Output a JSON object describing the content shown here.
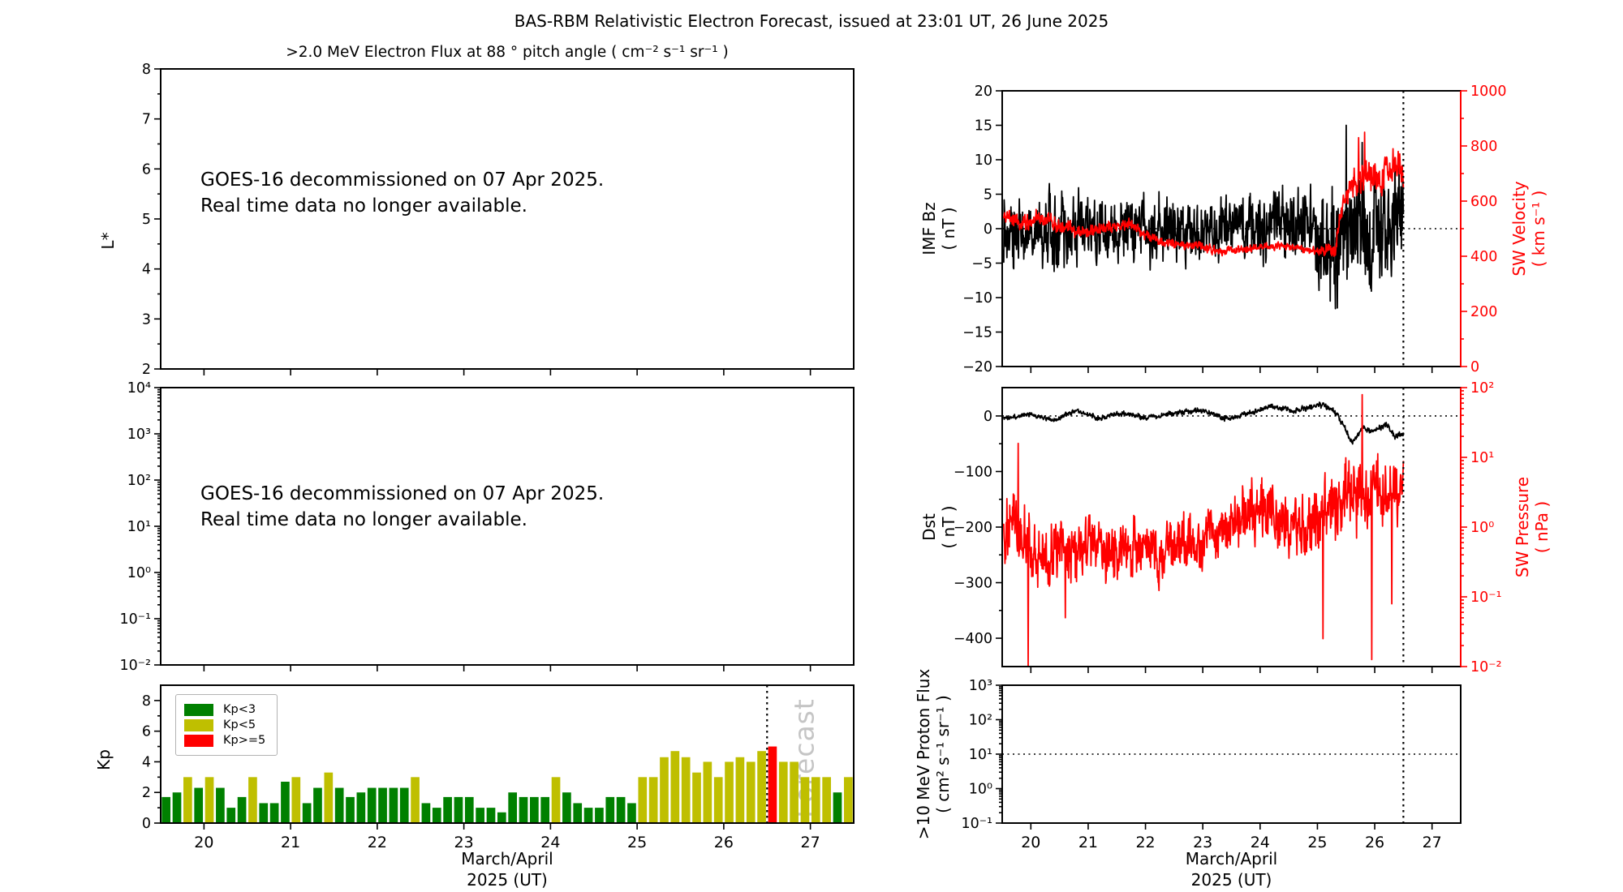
{
  "suptitle": "BAS-RBM Relativistic Electron Forecast, issued at 23:01 UT, 26 June 2025",
  "panels": {
    "electron_flux": {
      "title": ">2.0 MeV Electron Flux at 88 ° pitch angle ( cm⁻² s⁻¹ sr⁻¹ )",
      "ylabel": "L*",
      "yticks": [
        [
          "8",
          8
        ],
        [
          "7",
          7
        ],
        [
          "6",
          6
        ],
        [
          "5",
          5
        ],
        [
          "4",
          4
        ],
        [
          "3",
          3
        ],
        [
          "2",
          2
        ]
      ],
      "notice1": "GOES-16 decommissioned on 07 Apr 2025.",
      "notice2": "Real time data no longer available."
    },
    "flux_log": {
      "yticks": [
        [
          "10⁴",
          4
        ],
        [
          "10³",
          3
        ],
        [
          "10²",
          2
        ],
        [
          "10¹",
          1
        ],
        [
          "10⁰",
          0
        ],
        [
          "10⁻¹",
          -1
        ],
        [
          "10⁻²",
          -2
        ]
      ],
      "notice1": "GOES-16 decommissioned on 07 Apr 2025.",
      "notice2": "Real time data no longer available."
    },
    "kp": {
      "ylabel": "Kp",
      "yticks": [
        [
          "0",
          0
        ],
        [
          "2",
          2
        ],
        [
          "4",
          4
        ],
        [
          "6",
          6
        ],
        [
          "8",
          8
        ]
      ],
      "legend": [
        {
          "label": "Kp<3",
          "color": "#008000"
        },
        {
          "label": "Kp<5",
          "color": "#bfbf00"
        },
        {
          "label": "Kp>=5",
          "color": "#ff0000"
        }
      ],
      "forecast_label": "Forecast"
    },
    "imf_sw": {
      "ylabel_left1": "IMF Bz",
      "ylabel_left2": "( nT )",
      "ylabel_right1": "SW Velocity",
      "ylabel_right2": "( km s⁻¹ )",
      "yticks_left": [
        [
          "20",
          20
        ],
        [
          "15",
          15
        ],
        [
          "10",
          10
        ],
        [
          "5",
          5
        ],
        [
          "0",
          0
        ],
        [
          "−5",
          -5
        ],
        [
          "−10",
          -10
        ],
        [
          "−15",
          -15
        ],
        [
          "−20",
          -20
        ]
      ],
      "yticks_right": [
        [
          "1000",
          1000
        ],
        [
          "800",
          800
        ],
        [
          "600",
          600
        ],
        [
          "400",
          400
        ],
        [
          "200",
          200
        ],
        [
          "0",
          0
        ]
      ]
    },
    "dst_pressure": {
      "ylabel_left1": "Dst",
      "ylabel_left2": "( nT )",
      "ylabel_right1": "SW Pressure",
      "ylabel_right2": "( nPa )",
      "yticks_left": [
        [
          "0",
          0
        ],
        [
          "−100",
          -100
        ],
        [
          "−200",
          -200
        ],
        [
          "−300",
          -300
        ],
        [
          "−400",
          -400
        ]
      ],
      "yticks_right": [
        [
          "10²",
          2
        ],
        [
          "10¹",
          1
        ],
        [
          "10⁰",
          0
        ],
        [
          "10⁻¹",
          -1
        ],
        [
          "10⁻²",
          -2
        ]
      ]
    },
    "proton": {
      "ylabel1": ">10 MeV Proton Flux",
      "ylabel2": "( cm² s⁻¹ sr⁻¹ )",
      "yticks": [
        [
          "10³",
          3
        ],
        [
          "10²",
          2
        ],
        [
          "10¹",
          1
        ],
        [
          "10⁰",
          0
        ],
        [
          "10⁻¹",
          -1
        ]
      ]
    }
  },
  "xaxis": {
    "ticks": [
      [
        "20",
        20
      ],
      [
        "21",
        21
      ],
      [
        "22",
        22
      ],
      [
        "23",
        23
      ],
      [
        "24",
        24
      ],
      [
        "25",
        25
      ],
      [
        "26",
        26
      ],
      [
        "27",
        27
      ]
    ],
    "label1": "March/April",
    "label2": "2025 (UT)",
    "forecast_day": 26.5
  },
  "chart_data": [
    {
      "id": "kp_bars",
      "type": "bar",
      "panel": "kp",
      "xlim": [
        19.5,
        27.5
      ],
      "ylim": [
        0,
        9
      ],
      "bar_start_day": 19.375,
      "bar_step_days": 0.125,
      "colors": {
        "g": "#008000",
        "y": "#bfbf00",
        "r": "#ff0000"
      },
      "bars": [
        [
          "y",
          3.0
        ],
        [
          "g",
          1.7
        ],
        [
          "g",
          2.0
        ],
        [
          "y",
          3.0
        ],
        [
          "g",
          2.3
        ],
        [
          "y",
          3.0
        ],
        [
          "g",
          2.3
        ],
        [
          "g",
          1.0
        ],
        [
          "g",
          1.7
        ],
        [
          "y",
          3.0
        ],
        [
          "g",
          1.3
        ],
        [
          "g",
          1.3
        ],
        [
          "g",
          2.7
        ],
        [
          "y",
          3.0
        ],
        [
          "g",
          1.3
        ],
        [
          "g",
          2.3
        ],
        [
          "y",
          3.3
        ],
        [
          "g",
          2.3
        ],
        [
          "g",
          1.7
        ],
        [
          "g",
          2.0
        ],
        [
          "g",
          2.3
        ],
        [
          "g",
          2.3
        ],
        [
          "g",
          2.3
        ],
        [
          "g",
          2.3
        ],
        [
          "y",
          3.0
        ],
        [
          "g",
          1.3
        ],
        [
          "g",
          1.0
        ],
        [
          "g",
          1.7
        ],
        [
          "g",
          1.7
        ],
        [
          "g",
          1.7
        ],
        [
          "g",
          1.0
        ],
        [
          "g",
          1.0
        ],
        [
          "g",
          0.7
        ],
        [
          "g",
          2.0
        ],
        [
          "g",
          1.7
        ],
        [
          "g",
          1.7
        ],
        [
          "g",
          1.7
        ],
        [
          "y",
          3.0
        ],
        [
          "g",
          2.0
        ],
        [
          "g",
          1.3
        ],
        [
          "g",
          1.0
        ],
        [
          "g",
          1.0
        ],
        [
          "g",
          1.7
        ],
        [
          "g",
          1.7
        ],
        [
          "g",
          1.3
        ],
        [
          "y",
          3.0
        ],
        [
          "y",
          3.0
        ],
        [
          "y",
          4.3
        ],
        [
          "y",
          4.7
        ],
        [
          "y",
          4.3
        ],
        [
          "y",
          3.3
        ],
        [
          "y",
          4.0
        ],
        [
          "y",
          3.0
        ],
        [
          "y",
          4.0
        ],
        [
          "y",
          4.3
        ],
        [
          "y",
          4.0
        ],
        [
          "y",
          4.7
        ],
        [
          "r",
          5.0
        ],
        [
          "y",
          4.0
        ],
        [
          "y",
          4.0
        ],
        [
          "y",
          3.0
        ],
        [
          "y",
          3.0
        ],
        [
          "y",
          3.0
        ],
        [
          "g",
          2.0
        ],
        [
          "y",
          3.0
        ]
      ]
    },
    {
      "id": "imf_bz",
      "type": "line",
      "panel": "imf_sw",
      "axis": "left",
      "color": "#000000",
      "ylim": [
        -20,
        20
      ],
      "x_start": 19.52,
      "x_end": 26.5,
      "seed": 13,
      "base": [
        [
          19.52,
          0
        ],
        [
          20.2,
          -0.5
        ],
        [
          20.8,
          0.5
        ],
        [
          21.5,
          0
        ],
        [
          22.3,
          -0.5
        ],
        [
          23.0,
          0
        ],
        [
          23.8,
          0.5
        ],
        [
          24.5,
          0.5
        ],
        [
          25.0,
          -1
        ],
        [
          25.3,
          -3
        ],
        [
          25.55,
          0
        ],
        [
          25.9,
          1
        ],
        [
          26.2,
          1.5
        ],
        [
          26.5,
          2.5
        ]
      ],
      "noise_amp": [
        [
          19.52,
          4.2
        ],
        [
          21.0,
          3.8
        ],
        [
          22.0,
          3.4
        ],
        [
          23.5,
          3.4
        ],
        [
          24.5,
          4.0
        ],
        [
          25.1,
          5.0
        ],
        [
          25.45,
          6.5
        ],
        [
          26.5,
          5.5
        ]
      ],
      "spikes": [
        [
          25.22,
          -10.5
        ],
        [
          25.35,
          -11.5
        ],
        [
          25.5,
          15
        ],
        [
          25.78,
          12.5
        ],
        [
          26.42,
          9
        ]
      ]
    },
    {
      "id": "sw_velocity",
      "type": "line",
      "panel": "imf_sw",
      "axis": "right",
      "color": "#ff0000",
      "ylim": [
        0,
        1000
      ],
      "x_start": 19.52,
      "x_end": 26.5,
      "seed": 7,
      "base": [
        [
          19.52,
          540
        ],
        [
          19.9,
          520
        ],
        [
          20.15,
          545
        ],
        [
          20.5,
          505
        ],
        [
          20.9,
          490
        ],
        [
          21.3,
          505
        ],
        [
          21.7,
          515
        ],
        [
          22.1,
          465
        ],
        [
          22.5,
          445
        ],
        [
          23.0,
          435
        ],
        [
          23.35,
          415
        ],
        [
          23.7,
          425
        ],
        [
          24.1,
          435
        ],
        [
          24.4,
          440
        ],
        [
          24.7,
          428
        ],
        [
          25.0,
          415
        ],
        [
          25.3,
          425
        ],
        [
          25.45,
          600
        ],
        [
          25.6,
          655
        ],
        [
          25.75,
          690
        ],
        [
          25.9,
          700
        ],
        [
          26.05,
          660
        ],
        [
          26.2,
          710
        ],
        [
          26.35,
          730
        ],
        [
          26.5,
          715
        ]
      ],
      "noise_amp": [
        [
          19.52,
          24
        ],
        [
          21.0,
          18
        ],
        [
          22.5,
          12
        ],
        [
          25.0,
          10
        ],
        [
          25.45,
          35
        ],
        [
          25.8,
          48
        ],
        [
          26.5,
          42
        ]
      ],
      "spikes": [
        [
          25.72,
          830
        ],
        [
          25.82,
          850
        ],
        [
          26.32,
          790
        ]
      ]
    },
    {
      "id": "dst",
      "type": "line",
      "panel": "dst_pressure",
      "axis": "left",
      "color": "#000000",
      "ylim": [
        -451,
        51
      ],
      "x_start": 19.52,
      "x_end": 26.5,
      "seed": 3,
      "base": [
        [
          19.52,
          -5
        ],
        [
          20.0,
          3
        ],
        [
          20.4,
          -8
        ],
        [
          20.8,
          10
        ],
        [
          21.2,
          -5
        ],
        [
          21.6,
          5
        ],
        [
          22.0,
          -3
        ],
        [
          22.5,
          5
        ],
        [
          23.0,
          10
        ],
        [
          23.4,
          -5
        ],
        [
          23.8,
          5
        ],
        [
          24.2,
          18
        ],
        [
          24.6,
          8
        ],
        [
          25.0,
          20
        ],
        [
          25.25,
          15
        ],
        [
          25.45,
          -15
        ],
        [
          25.6,
          -48
        ],
        [
          25.8,
          -22
        ],
        [
          26.0,
          -28
        ],
        [
          26.2,
          -15
        ],
        [
          26.35,
          -38
        ],
        [
          26.5,
          -30
        ]
      ],
      "noise_amp": [
        [
          19.52,
          3
        ],
        [
          26.5,
          4
        ]
      ],
      "spikes": []
    },
    {
      "id": "sw_pressure",
      "type": "line",
      "panel": "dst_pressure",
      "axis": "right",
      "scale": "log",
      "color": "#ff0000",
      "ylim_log": [
        -2,
        2
      ],
      "x_start": 19.52,
      "x_end": 26.5,
      "seed": 5,
      "base": [
        [
          19.52,
          -0.1
        ],
        [
          19.7,
          0.1
        ],
        [
          19.95,
          -0.3
        ],
        [
          20.2,
          -0.5
        ],
        [
          20.5,
          -0.2
        ],
        [
          20.8,
          -0.45
        ],
        [
          21.1,
          -0.15
        ],
        [
          21.4,
          -0.35
        ],
        [
          21.8,
          -0.2
        ],
        [
          22.2,
          -0.4
        ],
        [
          22.6,
          -0.15
        ],
        [
          23.0,
          -0.25
        ],
        [
          23.4,
          -0.05
        ],
        [
          23.8,
          0.3
        ],
        [
          24.2,
          0.2
        ],
        [
          24.6,
          0.0
        ],
        [
          24.9,
          0.1
        ],
        [
          25.2,
          0.3
        ],
        [
          25.5,
          0.5
        ],
        [
          25.8,
          0.45
        ],
        [
          26.0,
          0.55
        ],
        [
          26.2,
          0.45
        ],
        [
          26.5,
          0.55
        ]
      ],
      "noise_amp": [
        [
          19.52,
          0.34
        ],
        [
          21.0,
          0.34
        ],
        [
          23.0,
          0.3
        ],
        [
          24.0,
          0.34
        ],
        [
          25.3,
          0.38
        ],
        [
          26.5,
          0.33
        ]
      ],
      "spikes": [
        [
          19.78,
          1.2
        ],
        [
          19.95,
          -2.0
        ],
        [
          20.6,
          -1.3
        ],
        [
          25.1,
          -1.6
        ],
        [
          25.55,
          0.95
        ],
        [
          25.78,
          1.9
        ],
        [
          25.95,
          -1.9
        ],
        [
          26.3,
          -1.1
        ]
      ]
    },
    {
      "id": "proton_flux",
      "type": "line",
      "panel": "proton",
      "scale": "log",
      "ylim_log": [
        -1,
        3
      ],
      "ref_line_log": 1,
      "values": []
    }
  ]
}
